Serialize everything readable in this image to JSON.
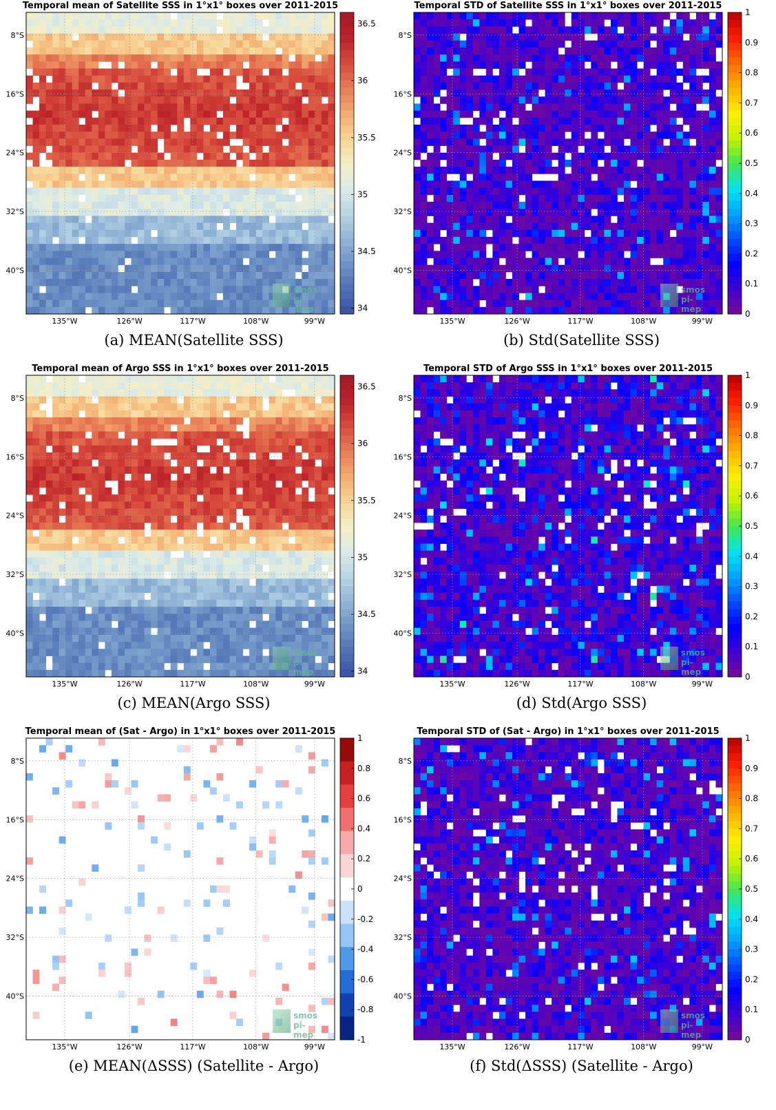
{
  "figure": {
    "panels": [
      {
        "id": "a",
        "title": "Temporal mean of Satellite SSS in 1°x1° boxes over 2011-2015",
        "caption": "(a) MEAN(Satellite SSS)",
        "kind": "mean"
      },
      {
        "id": "b",
        "title": "Temporal STD of Satellite SSS in 1°x1° boxes over 2011-2015",
        "caption": "(b) Std(Satellite SSS)",
        "kind": "std"
      },
      {
        "id": "c",
        "title": "Temporal mean of Argo SSS in 1°x1° boxes over 2011-2015",
        "caption": "(c) MEAN(Argo SSS)",
        "kind": "mean"
      },
      {
        "id": "d",
        "title": "Temporal STD of Argo SSS in 1°x1° boxes over 2011-2015",
        "caption": "(d) Std(Argo SSS)",
        "kind": "std"
      },
      {
        "id": "e",
        "title": "Temporal mean of (Sat - Argo) in 1°x1° boxes over 2011-2015",
        "caption": "(e) MEAN(ΔSSS) (Satellite - Argo)",
        "kind": "diff"
      },
      {
        "id": "f",
        "title": "Temporal STD of (Sat - Argo) in 1°x1° boxes over 2011-2015",
        "caption": "(f) Std(ΔSSS) (Satellite - Argo)",
        "kind": "std"
      }
    ],
    "x_ticks": [
      "135°W",
      "126°W",
      "117°W",
      "108°W",
      "99°W"
    ],
    "y_ticks": [
      "8°S",
      "16°S",
      "24°S",
      "32°S",
      "40°S"
    ],
    "watermark": {
      "line1": "smos",
      "line2": "pi-mep"
    },
    "colorbars": {
      "mean": {
        "ticks": [
          "36.5",
          "36",
          "35.5",
          "35",
          "34.5",
          "34"
        ],
        "range": [
          33.95,
          36.6
        ],
        "colors": [
          "#3951a5",
          "#4f71b4",
          "#6f94c6",
          "#93b6d7",
          "#b9d6e6",
          "#dcebe8",
          "#f5eec4",
          "#f8d394",
          "#f3aa6f",
          "#e77b55",
          "#d64a3c",
          "#bb2129",
          "#a11a27"
        ]
      },
      "std": {
        "ticks": [
          "1",
          "0.9",
          "0.8",
          "0.7",
          "0.6",
          "0.5",
          "0.4",
          "0.3",
          "0.2",
          "0.1",
          "0"
        ],
        "range": [
          0,
          1
        ],
        "colors": [
          "#7a0a94",
          "#3f00d4",
          "#0000ff",
          "#0050ff",
          "#00a6ff",
          "#00e6ee",
          "#46e64c",
          "#c5f200",
          "#ffee00",
          "#ffb000",
          "#ff6a00",
          "#ff1a00",
          "#b50000"
        ]
      },
      "diff": {
        "ticks": [
          "1",
          "0.8",
          "0.6",
          "0.4",
          "0.2",
          "0",
          "-0.2",
          "-0.4",
          "-0.6",
          "-0.8",
          "-1"
        ],
        "range": [
          -1,
          1
        ],
        "colors": [
          "#0a1a6a",
          "#0b2fa0",
          "#1760d0",
          "#3d8ee5",
          "#8cc0f3",
          "#c8e0fb",
          "#ffffff",
          "#fad2d2",
          "#f5a2a2",
          "#f06060",
          "#e03030",
          "#b81818",
          "#7a0000"
        ]
      }
    }
  },
  "chart_data": [
    {
      "type": "heatmap",
      "panel": "a",
      "title": "Temporal mean of Satellite SSS in 1°x1° boxes over 2011-2015",
      "x_range_deg": [
        -141,
        -93
      ],
      "y_range_deg": [
        -45,
        -4
      ],
      "colorbar_range": [
        34,
        36.5
      ],
      "description_values": {
        "band_8S": 35.2,
        "band_16S_24S": 36.3,
        "band_32S": 35.0,
        "band_40S": 34.3
      }
    },
    {
      "type": "heatmap",
      "panel": "b",
      "title": "Temporal STD of Satellite SSS in 1°x1° boxes over 2011-2015",
      "colorbar_range": [
        0,
        1
      ],
      "typical_value": 0.08
    },
    {
      "type": "heatmap",
      "panel": "c",
      "title": "Temporal mean of Argo SSS in 1°x1° boxes over 2011-2015",
      "colorbar_range": [
        34,
        36.5
      ]
    },
    {
      "type": "heatmap",
      "panel": "d",
      "title": "Temporal STD of Argo SSS in 1°x1° boxes over 2011-2015",
      "colorbar_range": [
        0,
        1
      ],
      "typical_value": 0.12
    },
    {
      "type": "heatmap",
      "panel": "e",
      "title": "Temporal mean of (Sat - Argo) in 1°x1° boxes over 2011-2015",
      "colorbar_range": [
        -1,
        1
      ],
      "typical_value": 0.0
    },
    {
      "type": "heatmap",
      "panel": "f",
      "title": "Temporal STD of (Sat - Argo) in 1°x1° boxes over 2011-2015",
      "colorbar_range": [
        0,
        1
      ],
      "typical_value": 0.08
    }
  ]
}
